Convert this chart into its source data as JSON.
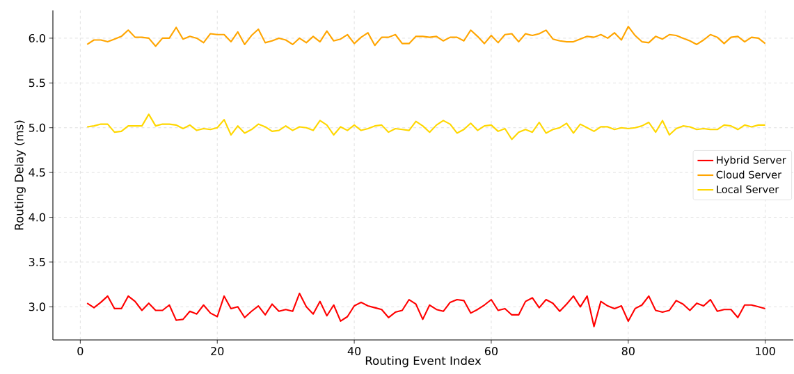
{
  "chart_data": {
    "type": "line",
    "xlabel": "Routing Event Index",
    "ylabel": "Routing Delay (ms)",
    "x": [
      1,
      2,
      3,
      4,
      5,
      6,
      7,
      8,
      9,
      10,
      11,
      12,
      13,
      14,
      15,
      16,
      17,
      18,
      19,
      20,
      21,
      22,
      23,
      24,
      25,
      26,
      27,
      28,
      29,
      30,
      31,
      32,
      33,
      34,
      35,
      36,
      37,
      38,
      39,
      40,
      41,
      42,
      43,
      44,
      45,
      46,
      47,
      48,
      49,
      50,
      51,
      52,
      53,
      54,
      55,
      56,
      57,
      58,
      59,
      60,
      61,
      62,
      63,
      64,
      65,
      66,
      67,
      68,
      69,
      70,
      71,
      72,
      73,
      74,
      75,
      76,
      77,
      78,
      79,
      80,
      81,
      82,
      83,
      84,
      85,
      86,
      87,
      88,
      89,
      90,
      91,
      92,
      93,
      94,
      95,
      96,
      97,
      98,
      99,
      100
    ],
    "series": [
      {
        "name": "Hybrid Server",
        "color": "#ff0000",
        "values": [
          3.04,
          2.99,
          3.05,
          3.12,
          2.98,
          2.98,
          3.12,
          3.06,
          2.96,
          3.04,
          2.96,
          2.96,
          3.02,
          2.85,
          2.86,
          2.95,
          2.92,
          3.02,
          2.93,
          2.89,
          3.12,
          2.98,
          3.0,
          2.88,
          2.95,
          3.01,
          2.91,
          3.03,
          2.95,
          2.97,
          2.95,
          3.15,
          3.0,
          2.92,
          3.06,
          2.9,
          3.02,
          2.84,
          2.89,
          3.01,
          3.05,
          3.01,
          2.99,
          2.97,
          2.88,
          2.94,
          2.96,
          3.08,
          3.03,
          2.86,
          3.02,
          2.97,
          2.95,
          3.05,
          3.08,
          3.07,
          2.93,
          2.97,
          3.02,
          3.08,
          2.96,
          2.98,
          2.91,
          2.91,
          3.06,
          3.1,
          2.99,
          3.08,
          3.04,
          2.95,
          3.03,
          3.12,
          3.0,
          3.12,
          2.78,
          3.06,
          3.01,
          2.98,
          3.01,
          2.84,
          2.98,
          3.02,
          3.12,
          2.96,
          2.94,
          2.96,
          3.07,
          3.03,
          2.96,
          3.04,
          3.01,
          3.08,
          2.95,
          2.97,
          2.97,
          2.88,
          3.02,
          3.02,
          3.0,
          2.98
        ]
      },
      {
        "name": "Cloud Server",
        "color": "#ffa500",
        "values": [
          5.93,
          5.98,
          5.98,
          5.96,
          5.99,
          6.02,
          6.09,
          6.01,
          6.01,
          6.0,
          5.91,
          6.0,
          6.0,
          6.12,
          5.99,
          6.02,
          6.0,
          5.95,
          6.05,
          6.04,
          6.04,
          5.96,
          6.07,
          5.93,
          6.03,
          6.1,
          5.95,
          5.97,
          6.0,
          5.98,
          5.93,
          6.0,
          5.95,
          6.02,
          5.96,
          6.08,
          5.97,
          5.99,
          6.04,
          5.94,
          6.01,
          6.06,
          5.92,
          6.01,
          6.01,
          6.04,
          5.94,
          5.94,
          6.02,
          6.02,
          6.01,
          6.02,
          5.97,
          6.01,
          6.01,
          5.97,
          6.09,
          6.02,
          5.94,
          6.03,
          5.95,
          6.04,
          6.05,
          5.96,
          6.05,
          6.03,
          6.05,
          6.09,
          5.99,
          5.97,
          5.96,
          5.96,
          5.99,
          6.02,
          6.01,
          6.04,
          6.0,
          6.06,
          5.98,
          6.13,
          6.03,
          5.96,
          5.95,
          6.02,
          5.99,
          6.04,
          6.03,
          6.0,
          5.97,
          5.93,
          5.98,
          6.04,
          6.01,
          5.94,
          6.01,
          6.02,
          5.96,
          6.01,
          6.0,
          5.94
        ]
      },
      {
        "name": "Local Server",
        "color": "#ffd700",
        "values": [
          5.01,
          5.02,
          5.04,
          5.04,
          4.95,
          4.96,
          5.02,
          5.02,
          5.02,
          5.15,
          5.02,
          5.04,
          5.04,
          5.03,
          4.99,
          5.03,
          4.97,
          4.99,
          4.98,
          5.0,
          5.09,
          4.92,
          5.02,
          4.94,
          4.98,
          5.04,
          5.01,
          4.96,
          4.97,
          5.02,
          4.97,
          5.01,
          5.0,
          4.97,
          5.08,
          5.03,
          4.92,
          5.01,
          4.97,
          5.03,
          4.97,
          4.99,
          5.02,
          5.03,
          4.95,
          4.99,
          4.98,
          4.97,
          5.07,
          5.02,
          4.95,
          5.03,
          5.08,
          5.04,
          4.94,
          4.98,
          5.05,
          4.97,
          5.02,
          5.03,
          4.96,
          4.99,
          4.87,
          4.95,
          4.98,
          4.95,
          5.06,
          4.94,
          4.98,
          5.0,
          5.05,
          4.94,
          5.04,
          5.0,
          4.96,
          5.01,
          5.01,
          4.98,
          5.0,
          4.99,
          5.0,
          5.02,
          5.06,
          4.95,
          5.08,
          4.92,
          4.99,
          5.02,
          5.01,
          4.98,
          4.99,
          4.98,
          4.98,
          5.03,
          5.02,
          4.98,
          5.03,
          5.01,
          5.03,
          5.03
        ]
      }
    ],
    "xlim": [
      -4,
      104.1
    ],
    "ylim": [
      2.63,
      6.31
    ],
    "xticks": [
      0,
      20,
      40,
      60,
      80,
      100
    ],
    "yticks": [
      {
        "value": 3,
        "label": "3.0"
      },
      {
        "value": 3.5,
        "label": "3.5"
      },
      {
        "value": 4,
        "label": "4.0"
      },
      {
        "value": 4.5,
        "label": "4.5"
      },
      {
        "value": 5,
        "label": "5.0"
      },
      {
        "value": 5.5,
        "label": "5.5"
      },
      {
        "value": 6,
        "label": "6.0"
      }
    ],
    "grid": true,
    "legend": "right"
  }
}
